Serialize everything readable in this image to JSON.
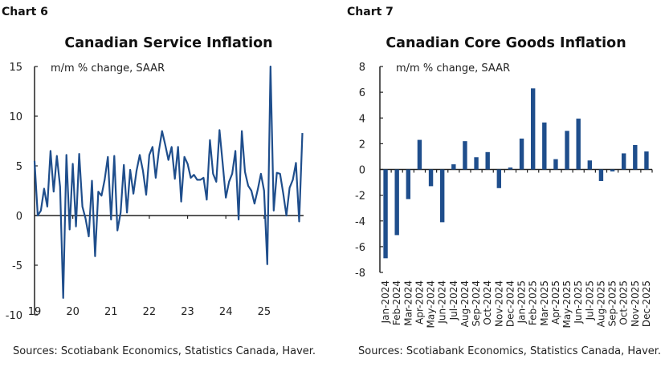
{
  "chart_data": [
    {
      "label": "Chart 6",
      "type": "line",
      "title": "Canadian Service Inflation",
      "annotation": "m/m % change, SAAR",
      "ylim": [
        -10,
        15
      ],
      "yticks": [
        -10,
        -5,
        0,
        5,
        10,
        15
      ],
      "xticks": [
        "19",
        "20",
        "21",
        "22",
        "23",
        "24",
        "25"
      ],
      "frequency": "monthly",
      "color": "#1f4e8c",
      "values": [
        5.5,
        0,
        0.5,
        2.7,
        0.9,
        6.5,
        2.4,
        6.0,
        2.9,
        -8.3,
        6.1,
        -1.4,
        5.2,
        -1.1,
        6.2,
        0.9,
        -0.3,
        -2.1,
        3.5,
        -4.1,
        2.4,
        2.0,
        3.6,
        5.9,
        -0.4,
        6.0,
        -1.5,
        0.3,
        5.1,
        0.3,
        4.6,
        2.2,
        4.5,
        6.1,
        4.5,
        2.1,
        6.1,
        6.9,
        3.8,
        6.5,
        8.5,
        7.1,
        5.6,
        6.9,
        3.7,
        6.9,
        1.4,
        5.9,
        5.2,
        3.8,
        4.1,
        3.6,
        3.6,
        3.8,
        1.6,
        7.6,
        4.2,
        3.4,
        8.6,
        5.3,
        1.8,
        3.4,
        4.2,
        6.5,
        -0.4,
        8.5,
        4.4,
        3.0,
        2.5,
        1.2,
        2.6,
        4.2,
        2.5,
        -4.9,
        15.0,
        0.5,
        4.3,
        4.2,
        2.2,
        0,
        2.8,
        3.6,
        5.3,
        -0.6,
        8.3
      ],
      "source": "Sources: Scotiabank Economics, Statistics Canada, Haver."
    },
    {
      "label": "Chart 7",
      "type": "bar",
      "title": "Canadian Core Goods Inflation",
      "annotation": "m/m % change, SAAR",
      "ylim": [
        -8,
        8
      ],
      "yticks": [
        -8,
        -6,
        -4,
        -2,
        0,
        2,
        4,
        6,
        8
      ],
      "color": "#1f4e8c",
      "categories": [
        "Jan-2024",
        "Feb-2024",
        "Mar-2024",
        "Apr-2024",
        "May-2024",
        "Jun-2024",
        "Jul-2024",
        "Aug-2024",
        "Sep-2024",
        "Oct-2024",
        "Nov-2024",
        "Dec-2024",
        "Jan-2025",
        "Feb-2025",
        "Mar-2025",
        "Apr-2025",
        "May-2025",
        "Jun-2025",
        "Jul-2025",
        "Aug-2025",
        "Sep-2025",
        "Oct-2025",
        "Nov-2025",
        "Dec-2025"
      ],
      "values": [
        -6.9,
        -5.1,
        -2.3,
        2.3,
        -1.3,
        -4.1,
        0.4,
        2.2,
        0.95,
        1.35,
        -1.45,
        0.15,
        2.4,
        6.3,
        3.65,
        0.8,
        3.0,
        3.95,
        0.7,
        -0.9,
        -0.15,
        1.25,
        1.9,
        1.4
      ],
      "source": "Sources: Scotiabank Economics, Statistics Canada, Haver."
    }
  ]
}
